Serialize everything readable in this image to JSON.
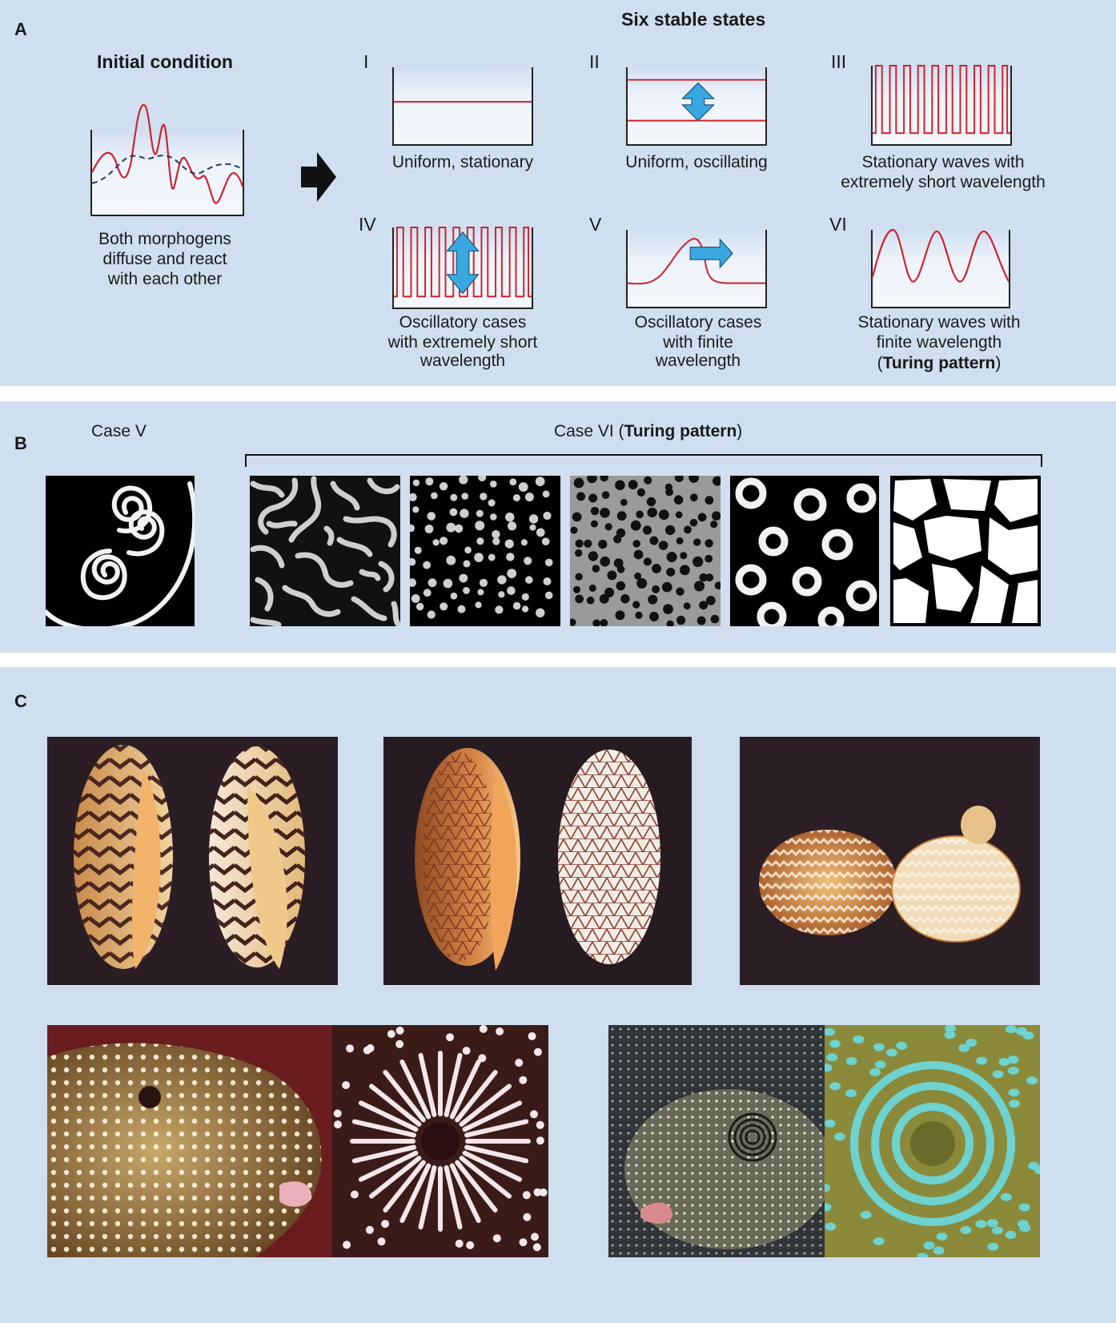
{
  "panelA": {
    "label": "A",
    "header": "Six stable states",
    "initial": {
      "title": "Initial condition",
      "caption_l1": "Both morphogens",
      "caption_l2": "diffuse and react",
      "caption_l3": "with each other"
    },
    "states": [
      {
        "numeral": "I",
        "l1": "Uniform, stationary"
      },
      {
        "numeral": "II",
        "l1": "Uniform, oscillating"
      },
      {
        "numeral": "III",
        "l1": "Stationary waves with",
        "l2": "extremely short wavelength"
      },
      {
        "numeral": "IV",
        "l1": "Oscillatory cases",
        "l2": "with extremely short",
        "l3": "wavelength"
      },
      {
        "numeral": "V",
        "l1": "Oscillatory cases",
        "l2": "with finite",
        "l3": "wavelength"
      },
      {
        "numeral": "VI",
        "l1": "Stationary waves with",
        "l2": "finite wavelength",
        "l3_open": "(",
        "l3_bold": "Turing pattern",
        "l3_close": ")"
      }
    ]
  },
  "panelB": {
    "label": "B",
    "case5": "Case V",
    "case6_pre": "Case VI (",
    "case6_bold": "Turing pattern",
    "case6_post": ")"
  },
  "panelC": {
    "label": "C"
  },
  "colors": {
    "panel_bg": "#cfdff0",
    "curve_red": "#d0202a",
    "curve_dash": "#1f3a5f",
    "arrow_blue": "#3aa8e0"
  }
}
